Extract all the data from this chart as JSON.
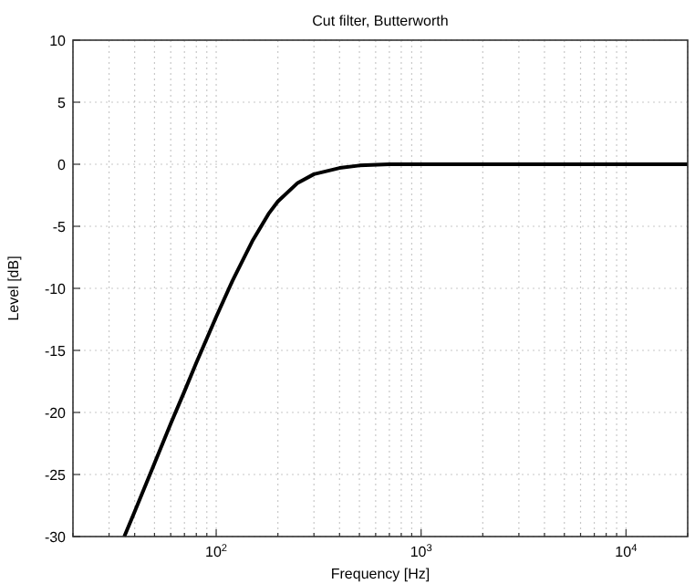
{
  "chart_data": {
    "type": "line",
    "title": "Cut filter, Butterworth",
    "xlabel": "Frequency [Hz]",
    "ylabel": "Level [dB]",
    "log": "x",
    "grid": true,
    "line_style": "solid",
    "marker": "none",
    "xlim": [
      20,
      20000
    ],
    "ylim": [
      -30,
      10
    ],
    "xticks": [
      {
        "value": 20,
        "label": null
      },
      {
        "value": 30,
        "label": null
      },
      {
        "value": 40,
        "label": null
      },
      {
        "value": 50,
        "label": null
      },
      {
        "value": 60,
        "label": null
      },
      {
        "value": 70,
        "label": null
      },
      {
        "value": 80,
        "label": null
      },
      {
        "value": 90,
        "label": null
      },
      {
        "value": 100,
        "label": "10$^{2}$"
      },
      {
        "value": 200,
        "label": null
      },
      {
        "value": 300,
        "label": null
      },
      {
        "value": 400,
        "label": null
      },
      {
        "value": 500,
        "label": null
      },
      {
        "value": 600,
        "label": null
      },
      {
        "value": 700,
        "label": null
      },
      {
        "value": 800,
        "label": null
      },
      {
        "value": 900,
        "label": null
      },
      {
        "value": 1000,
        "label": "10$^{3}$"
      },
      {
        "value": 2000,
        "label": null
      },
      {
        "value": 3000,
        "label": null
      },
      {
        "value": 4000,
        "label": null
      },
      {
        "value": 5000,
        "label": null
      },
      {
        "value": 6000,
        "label": null
      },
      {
        "value": 7000,
        "label": null
      },
      {
        "value": 8000,
        "label": null
      },
      {
        "value": 9000,
        "label": null
      },
      {
        "value": 10000,
        "label": "10$^{4}$"
      },
      {
        "value": 20000,
        "label": null
      }
    ],
    "yticks": [
      -30,
      -25,
      -20,
      -15,
      -10,
      -5,
      0,
      5,
      10
    ],
    "x": [
      35.6,
      40,
      50,
      60,
      70,
      80,
      100,
      120,
      150,
      180,
      200,
      250,
      300,
      400,
      500,
      700,
      1000,
      2000,
      5000,
      10000,
      20000
    ],
    "series": [
      {
        "color": "#000000",
        "values": [
          -30,
          -28.0,
          -24.1,
          -20.9,
          -18.3,
          -16.0,
          -12.3,
          -9.4,
          -6.2,
          -4.0,
          -3.0,
          -1.5,
          -0.8,
          -0.3,
          -0.1,
          0,
          0,
          0,
          0,
          0,
          0
        ]
      }
    ]
  }
}
